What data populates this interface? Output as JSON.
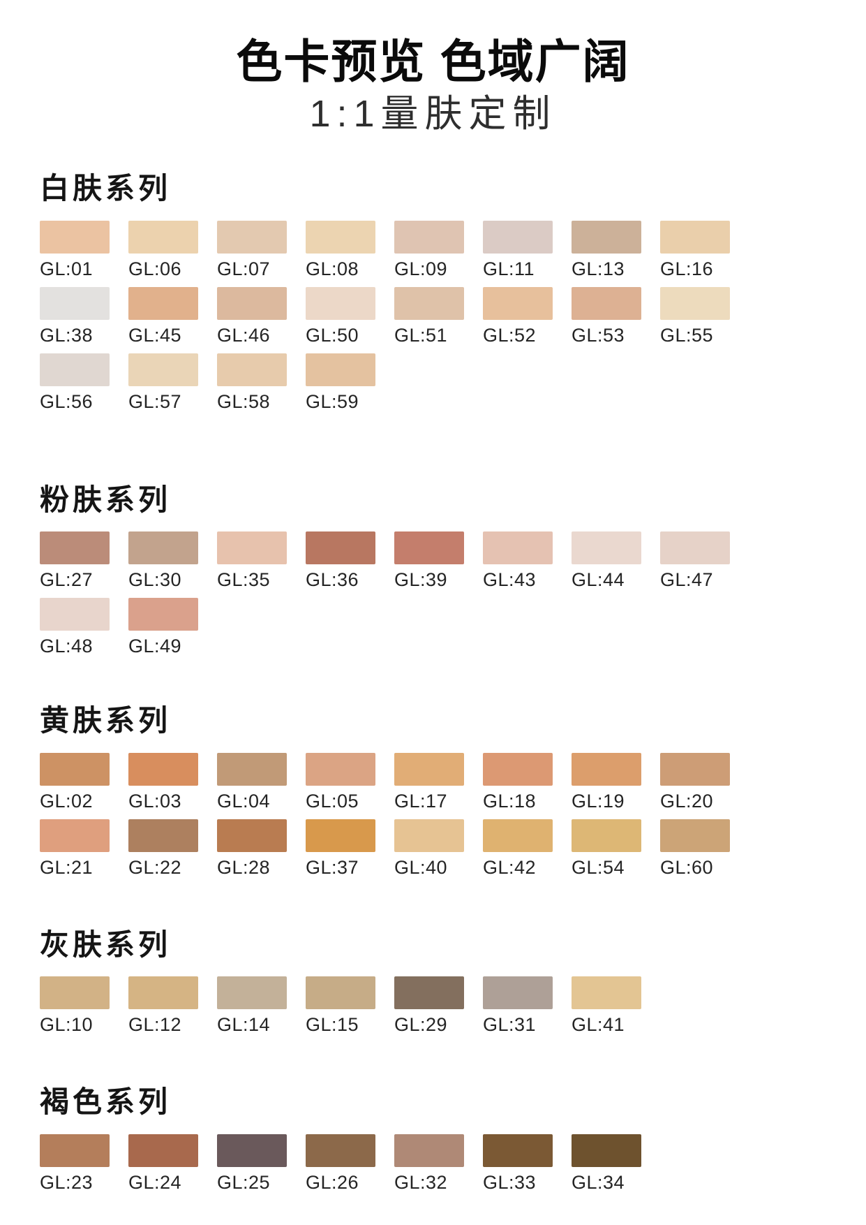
{
  "page": {
    "title": "色卡预览 色域广阔",
    "subtitle": "1:1量肤定制"
  },
  "series": [
    {
      "name": "白肤系列",
      "swatches": [
        {
          "code": "GL:01",
          "color": "#EBC3A2"
        },
        {
          "code": "GL:06",
          "color": "#ECD2AE"
        },
        {
          "code": "GL:07",
          "color": "#E3C9B0"
        },
        {
          "code": "GL:08",
          "color": "#ECD4B1"
        },
        {
          "code": "GL:09",
          "color": "#DFC4B2"
        },
        {
          "code": "GL:11",
          "color": "#DBCBC5"
        },
        {
          "code": "GL:13",
          "color": "#CCB199"
        },
        {
          "code": "GL:16",
          "color": "#EACFAB"
        },
        {
          "code": "GL:38",
          "color": "#E3E1DF"
        },
        {
          "code": "GL:45",
          "color": "#E1B18C"
        },
        {
          "code": "GL:46",
          "color": "#DCB99E"
        },
        {
          "code": "GL:50",
          "color": "#ECD8C8"
        },
        {
          "code": "GL:51",
          "color": "#DFC2A9"
        },
        {
          "code": "GL:52",
          "color": "#E7C09C"
        },
        {
          "code": "GL:53",
          "color": "#DDB193"
        },
        {
          "code": "GL:55",
          "color": "#EDDBBD"
        },
        {
          "code": "GL:56",
          "color": "#E0D7D1"
        },
        {
          "code": "GL:57",
          "color": "#EAD5B7"
        },
        {
          "code": "GL:58",
          "color": "#E7CBAC"
        },
        {
          "code": "GL:59",
          "color": "#E4C2A0"
        }
      ]
    },
    {
      "name": "粉肤系列",
      "swatches": [
        {
          "code": "GL:27",
          "color": "#BB8C79"
        },
        {
          "code": "GL:30",
          "color": "#C2A38D"
        },
        {
          "code": "GL:35",
          "color": "#E7C2AD"
        },
        {
          "code": "GL:36",
          "color": "#B87761"
        },
        {
          "code": "GL:39",
          "color": "#C47E6C"
        },
        {
          "code": "GL:43",
          "color": "#E5C2B2"
        },
        {
          "code": "GL:44",
          "color": "#EAD8CF"
        },
        {
          "code": "GL:47",
          "color": "#E6D2C8"
        },
        {
          "code": "GL:48",
          "color": "#E8D5CC"
        },
        {
          "code": "GL:49",
          "color": "#DAA18C"
        }
      ]
    },
    {
      "name": "黄肤系列",
      "swatches": [
        {
          "code": "GL:02",
          "color": "#CD9264"
        },
        {
          "code": "GL:03",
          "color": "#D88E5E"
        },
        {
          "code": "GL:04",
          "color": "#C19A77"
        },
        {
          "code": "GL:05",
          "color": "#DBA484"
        },
        {
          "code": "GL:17",
          "color": "#E1AD76"
        },
        {
          "code": "GL:18",
          "color": "#DC9973"
        },
        {
          "code": "GL:19",
          "color": "#DC9E6C"
        },
        {
          "code": "GL:20",
          "color": "#CD9D76"
        },
        {
          "code": "GL:21",
          "color": "#DF9F7E"
        },
        {
          "code": "GL:22",
          "color": "#AD805F"
        },
        {
          "code": "GL:28",
          "color": "#B97C51"
        },
        {
          "code": "GL:37",
          "color": "#D8994C"
        },
        {
          "code": "GL:40",
          "color": "#E6C393"
        },
        {
          "code": "GL:42",
          "color": "#DFB270"
        },
        {
          "code": "GL:54",
          "color": "#DDB775"
        },
        {
          "code": "GL:60",
          "color": "#CCA477"
        }
      ]
    },
    {
      "name": "灰肤系列",
      "swatches": [
        {
          "code": "GL:10",
          "color": "#D2B286"
        },
        {
          "code": "GL:12",
          "color": "#D5B484"
        },
        {
          "code": "GL:14",
          "color": "#C3B199"
        },
        {
          "code": "GL:15",
          "color": "#C6AC87"
        },
        {
          "code": "GL:29",
          "color": "#836F5E"
        },
        {
          "code": "GL:31",
          "color": "#AEA097"
        },
        {
          "code": "GL:41",
          "color": "#E3C593"
        }
      ]
    },
    {
      "name": "褐色系列",
      "swatches": [
        {
          "code": "GL:23",
          "color": "#B47E5B"
        },
        {
          "code": "GL:24",
          "color": "#A8694D"
        },
        {
          "code": "GL:25",
          "color": "#6A595B"
        },
        {
          "code": "GL:26",
          "color": "#8C694A"
        },
        {
          "code": "GL:32",
          "color": "#AF8976"
        },
        {
          "code": "GL:33",
          "color": "#7B5934"
        },
        {
          "code": "GL:34",
          "color": "#6E522E"
        }
      ]
    }
  ],
  "chart_data": {
    "type": "table",
    "title": "色卡预览 色域广阔",
    "subtitle": "1:1量肤定制",
    "legend_position": "none",
    "groups": [
      {
        "name": "白肤系列",
        "codes": [
          "GL:01",
          "GL:06",
          "GL:07",
          "GL:08",
          "GL:09",
          "GL:11",
          "GL:13",
          "GL:16",
          "GL:38",
          "GL:45",
          "GL:46",
          "GL:50",
          "GL:51",
          "GL:52",
          "GL:53",
          "GL:55",
          "GL:56",
          "GL:57",
          "GL:58",
          "GL:59"
        ],
        "colors": [
          "#EBC3A2",
          "#ECD2AE",
          "#E3C9B0",
          "#ECD4B1",
          "#DFC4B2",
          "#DBCBC5",
          "#CCB199",
          "#EACFAB",
          "#E3E1DF",
          "#E1B18C",
          "#DCB99E",
          "#ECD8C8",
          "#DFC2A9",
          "#E7C09C",
          "#DDB193",
          "#EDDBBD",
          "#E0D7D1",
          "#EAD5B7",
          "#E7CBAC",
          "#E4C2A0"
        ]
      },
      {
        "name": "粉肤系列",
        "codes": [
          "GL:27",
          "GL:30",
          "GL:35",
          "GL:36",
          "GL:39",
          "GL:43",
          "GL:44",
          "GL:47",
          "GL:48",
          "GL:49"
        ],
        "colors": [
          "#BB8C79",
          "#C2A38D",
          "#E7C2AD",
          "#B87761",
          "#C47E6C",
          "#E5C2B2",
          "#EAD8CF",
          "#E6D2C8",
          "#E8D5CC",
          "#DAA18C"
        ]
      },
      {
        "name": "黄肤系列",
        "codes": [
          "GL:02",
          "GL:03",
          "GL:04",
          "GL:05",
          "GL:17",
          "GL:18",
          "GL:19",
          "GL:20",
          "GL:21",
          "GL:22",
          "GL:28",
          "GL:37",
          "GL:40",
          "GL:42",
          "GL:54",
          "GL:60"
        ],
        "colors": [
          "#CD9264",
          "#D88E5E",
          "#C19A77",
          "#DBA484",
          "#E1AD76",
          "#DC9973",
          "#DC9E6C",
          "#CD9D76",
          "#DF9F7E",
          "#AD805F",
          "#B97C51",
          "#D8994C",
          "#E6C393",
          "#DFB270",
          "#DDB775",
          "#CCA477"
        ]
      },
      {
        "name": "灰肤系列",
        "codes": [
          "GL:10",
          "GL:12",
          "GL:14",
          "GL:15",
          "GL:29",
          "GL:31",
          "GL:41"
        ],
        "colors": [
          "#D2B286",
          "#D5B484",
          "#C3B199",
          "#C6AC87",
          "#836F5E",
          "#AEA097",
          "#E3C593"
        ]
      },
      {
        "name": "褐色系列",
        "codes": [
          "GL:23",
          "GL:24",
          "GL:25",
          "GL:26",
          "GL:32",
          "GL:33",
          "GL:34"
        ],
        "colors": [
          "#B47E5B",
          "#A8694D",
          "#6A595B",
          "#8C694A",
          "#AF8976",
          "#7B5934",
          "#6E522E"
        ]
      }
    ]
  }
}
